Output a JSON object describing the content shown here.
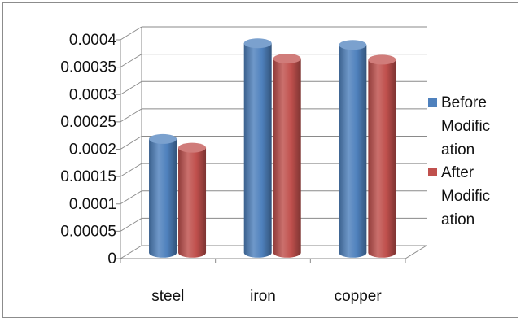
{
  "colors": {
    "before": "#4f81bd",
    "after": "#c0504d",
    "grid": "#8a8a8a"
  },
  "chart_data": {
    "type": "bar",
    "categories": [
      "steel",
      "iron",
      "copper"
    ],
    "series": [
      {
        "name": "Before Modification",
        "legend_lines": [
          "Before",
          "Modific",
          "ation"
        ],
        "values": [
          0.000208,
          0.000383,
          0.00038
        ]
      },
      {
        "name": "After Modification",
        "legend_lines": [
          "After",
          "Modific",
          "ation"
        ],
        "values": [
          0.000192,
          0.000355,
          0.000353
        ]
      }
    ],
    "ylim": [
      0,
      0.0004
    ],
    "yticks": [
      "0",
      "0.00005",
      "0.0001",
      "0.00015",
      "0.0002",
      "0.00025",
      "0.0003",
      "0.00035",
      "0.0004"
    ],
    "grid": true,
    "legend_position": "right",
    "title": "",
    "xlabel": "",
    "ylabel": ""
  }
}
